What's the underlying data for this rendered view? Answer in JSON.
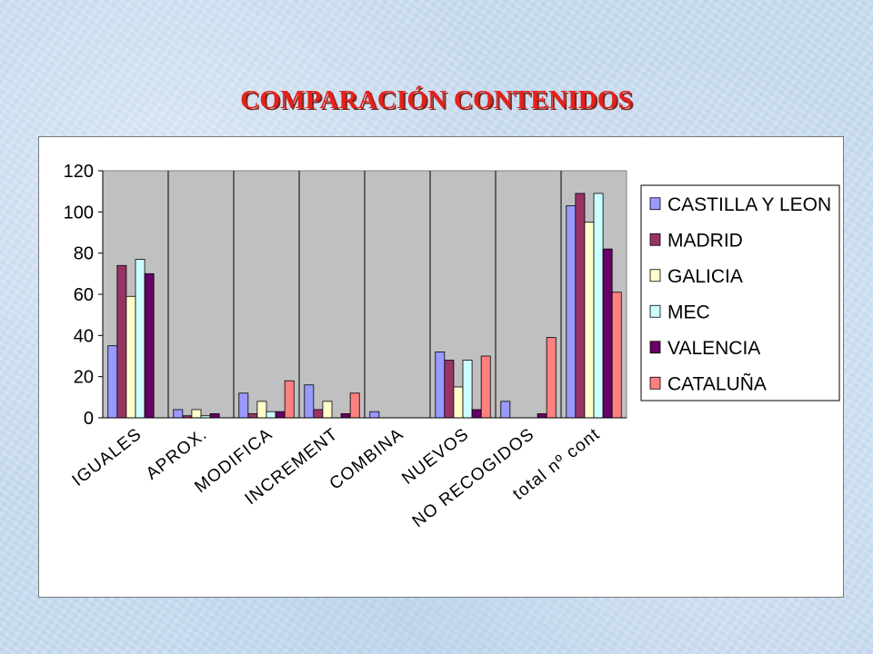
{
  "title": "COMPARACIÓN CONTENIDOS",
  "chart_data": {
    "type": "bar",
    "title": "",
    "xlabel": "",
    "ylabel": "",
    "ylim": [
      0,
      120
    ],
    "yticks": [
      0,
      20,
      40,
      60,
      80,
      100,
      120
    ],
    "grid": "vertical category separators",
    "legend_position": "right",
    "categories": [
      "IGUALES",
      "APROX.",
      "MODIFICA",
      "INCREMENT",
      "COMBINA",
      "NUEVOS",
      "NO RECOGIDOS",
      "total nº cont"
    ],
    "series": [
      {
        "name": "CASTILLA Y LEON",
        "color": "#9999ff",
        "values": [
          35,
          4,
          12,
          16,
          3,
          32,
          8,
          103
        ]
      },
      {
        "name": "MADRID",
        "color": "#993366",
        "values": [
          74,
          1,
          2,
          4,
          0,
          28,
          0,
          109
        ]
      },
      {
        "name": "GALICIA",
        "color": "#ffffcc",
        "values": [
          59,
          4,
          8,
          8,
          0,
          15,
          0,
          95
        ]
      },
      {
        "name": "MEC",
        "color": "#ccffff",
        "values": [
          77,
          1,
          3,
          0,
          0,
          28,
          0,
          109
        ]
      },
      {
        "name": "VALENCIA",
        "color": "#660066",
        "values": [
          70,
          2,
          3,
          2,
          0,
          4,
          2,
          82
        ]
      },
      {
        "name": "CATALUÑA",
        "color": "#ff8080",
        "values": [
          0,
          0,
          18,
          12,
          0,
          30,
          39,
          61
        ]
      }
    ],
    "plot_background": "#c0c0c0"
  }
}
